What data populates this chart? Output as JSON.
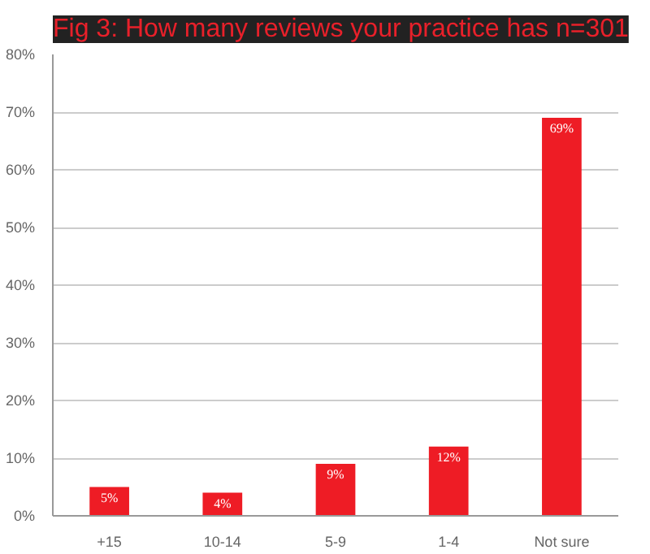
{
  "chart_data": {
    "type": "bar",
    "title": "Fig 3: How many reviews your practice has n=301",
    "categories": [
      "+15",
      "10-14",
      "5-9",
      "1-4",
      "Not sure"
    ],
    "values": [
      5,
      4,
      9,
      12,
      69
    ],
    "value_labels": [
      "5%",
      "4%",
      "9%",
      "12%",
      "69%"
    ],
    "color": "#ee1c25",
    "ylim": [
      0,
      80
    ],
    "yticks": [
      {
        "value": 0,
        "label": "0%"
      },
      {
        "value": 10,
        "label": "10%"
      },
      {
        "value": 20,
        "label": "20%"
      },
      {
        "value": 30,
        "label": "30%"
      },
      {
        "value": 40,
        "label": "40%"
      },
      {
        "value": 50,
        "label": "50%"
      },
      {
        "value": 60,
        "label": "60%"
      },
      {
        "value": 70,
        "label": "70%"
      },
      {
        "value": 80,
        "label": "80%"
      }
    ],
    "grid": "y"
  }
}
